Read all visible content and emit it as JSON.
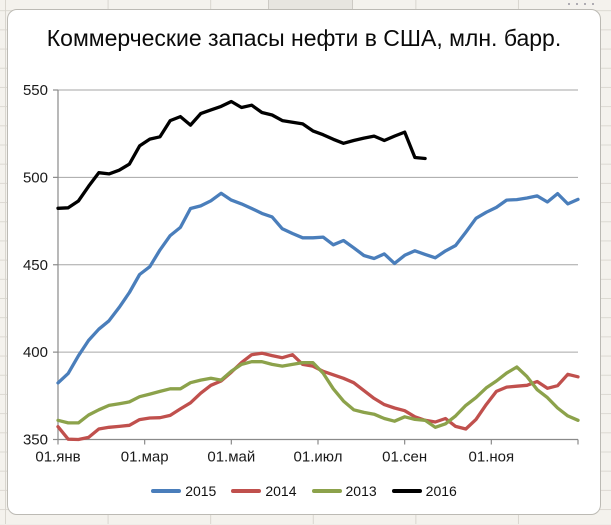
{
  "chart_data": {
    "type": "line",
    "title": "Коммерческие запасы нефти в США, млн. барр.",
    "xlabel": "",
    "ylabel": "",
    "x_tick_labels": [
      "01.янв",
      "01.мар",
      "01.май",
      "01.июл",
      "01.сен",
      "01.ноя"
    ],
    "y_ticks": [
      350,
      400,
      450,
      500,
      550
    ],
    "ylim": [
      350,
      550
    ],
    "points_per_year": 52,
    "x_unit": "week",
    "grid": "horizontal",
    "legend_position": "bottom",
    "colors": {
      "grid": "#a6a6a6",
      "axis": "#8a8a8a",
      "text": "#1a1a1a"
    },
    "series": [
      {
        "name": "2015",
        "color": "#4A7EBB",
        "values": [
          382.4,
          387.8,
          397.9,
          406.7,
          413.1,
          417.9,
          425.6,
          434.1,
          444.4,
          448.9,
          458.5,
          466.7,
          471.4,
          482.2,
          483.7,
          486.6,
          490.9,
          487.0,
          484.8,
          482.2,
          479.4,
          477.4,
          470.6,
          467.9,
          465.4,
          465.4,
          465.8,
          461.4,
          463.9,
          459.7,
          455.3,
          453.6,
          456.2,
          450.8,
          455.4,
          458.0,
          455.9,
          454.0,
          457.9,
          461.0,
          468.6,
          476.6,
          480.0,
          482.8,
          487.0,
          487.3,
          488.2,
          489.4,
          485.9,
          490.7,
          484.8,
          487.4
        ]
      },
      {
        "name": "2014",
        "color": "#C0504D",
        "values": [
          357.3,
          350.2,
          350.0,
          351.2,
          356.0,
          357.0,
          357.5,
          358.1,
          361.4,
          362.3,
          362.5,
          363.8,
          367.5,
          371.0,
          376.5,
          381.0,
          383.5,
          388.5,
          394.0,
          398.5,
          399.4,
          398.0,
          396.8,
          398.5,
          393.0,
          392.0,
          389.0,
          387.0,
          385.0,
          382.5,
          378.0,
          373.5,
          370.0,
          368.0,
          366.5,
          363.0,
          361.0,
          360.0,
          362.0,
          357.5,
          356.0,
          361.5,
          370.0,
          377.5,
          380.0,
          380.5,
          381.0,
          383.2,
          379.3,
          380.8,
          387.3,
          385.9
        ]
      },
      {
        "name": "2013",
        "color": "#8CA24B",
        "values": [
          361.0,
          359.5,
          359.5,
          364.0,
          367.0,
          369.5,
          370.5,
          371.5,
          374.5,
          376.0,
          377.5,
          379.0,
          379.0,
          382.5,
          384.0,
          385.0,
          384.0,
          389.0,
          393.0,
          394.5,
          394.5,
          393.0,
          392.0,
          393.0,
          394.0,
          394.0,
          388.0,
          379.0,
          372.0,
          367.0,
          365.5,
          364.5,
          362.0,
          360.5,
          363.0,
          361.5,
          361.0,
          357.0,
          359.0,
          363.5,
          369.5,
          374.0,
          379.5,
          383.5,
          388.0,
          391.5,
          386.0,
          378.5,
          374.0,
          368.0,
          363.5,
          361.0
        ]
      },
      {
        "name": "2016",
        "color": "#000000",
        "values": [
          482.3,
          482.6,
          486.5,
          494.9,
          502.7,
          502.0,
          504.1,
          507.6,
          518.0,
          521.9,
          523.2,
          532.5,
          534.8,
          529.9,
          536.5,
          538.6,
          540.6,
          543.4,
          540.0,
          541.3,
          537.1,
          535.7,
          532.5,
          531.5,
          530.6,
          526.6,
          524.4,
          521.8,
          519.5,
          521.1,
          522.5,
          523.6,
          521.1,
          523.6,
          525.9,
          511.4,
          510.8
        ]
      }
    ]
  }
}
